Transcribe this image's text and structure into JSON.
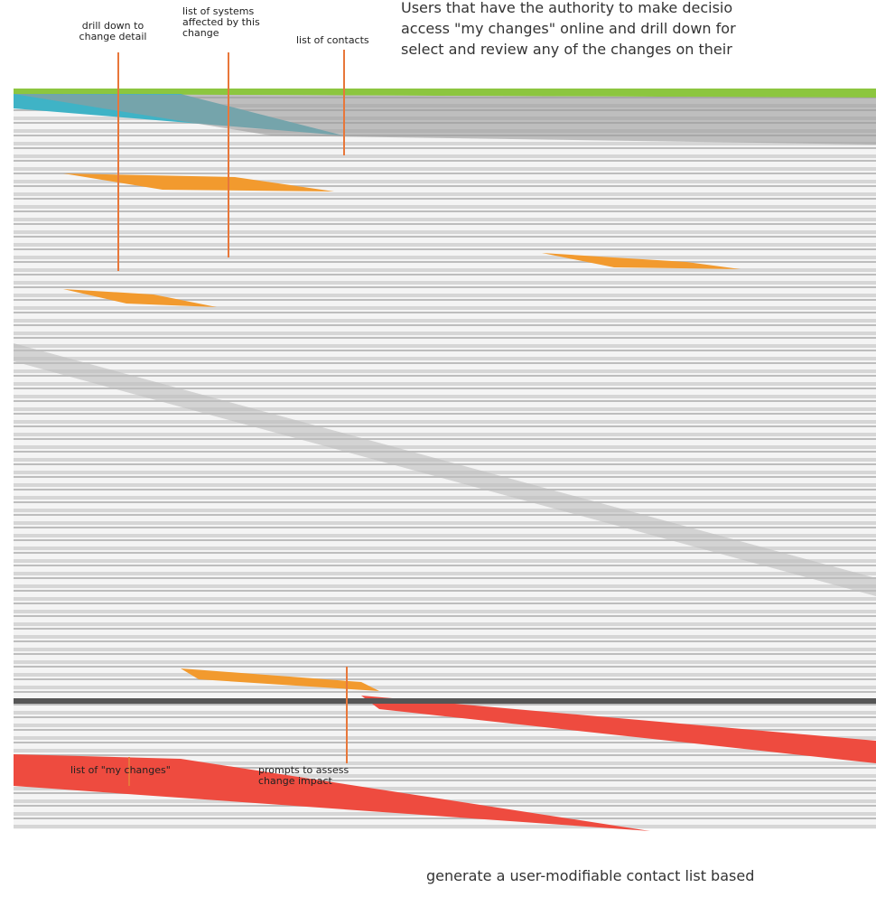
{
  "intro": {
    "lines": [
      "Users that have the authority to make decisio",
      "access \"my changes\" online and drill down for",
      "select and review any of the changes on their"
    ]
  },
  "annotations": [
    {
      "lines": [
        "drill down to",
        "change detail"
      ]
    },
    {
      "lines": [
        "list of systems",
        "affected by this",
        "change"
      ]
    },
    {
      "lines": [
        "list of contacts"
      ]
    },
    {
      "lines": [
        "list of \"my changes\""
      ]
    },
    {
      "lines": [
        "prompts to assess",
        "change impact"
      ]
    }
  ],
  "footer": {
    "lines": [
      "generate a user-modifiable contact list based"
    ]
  }
}
